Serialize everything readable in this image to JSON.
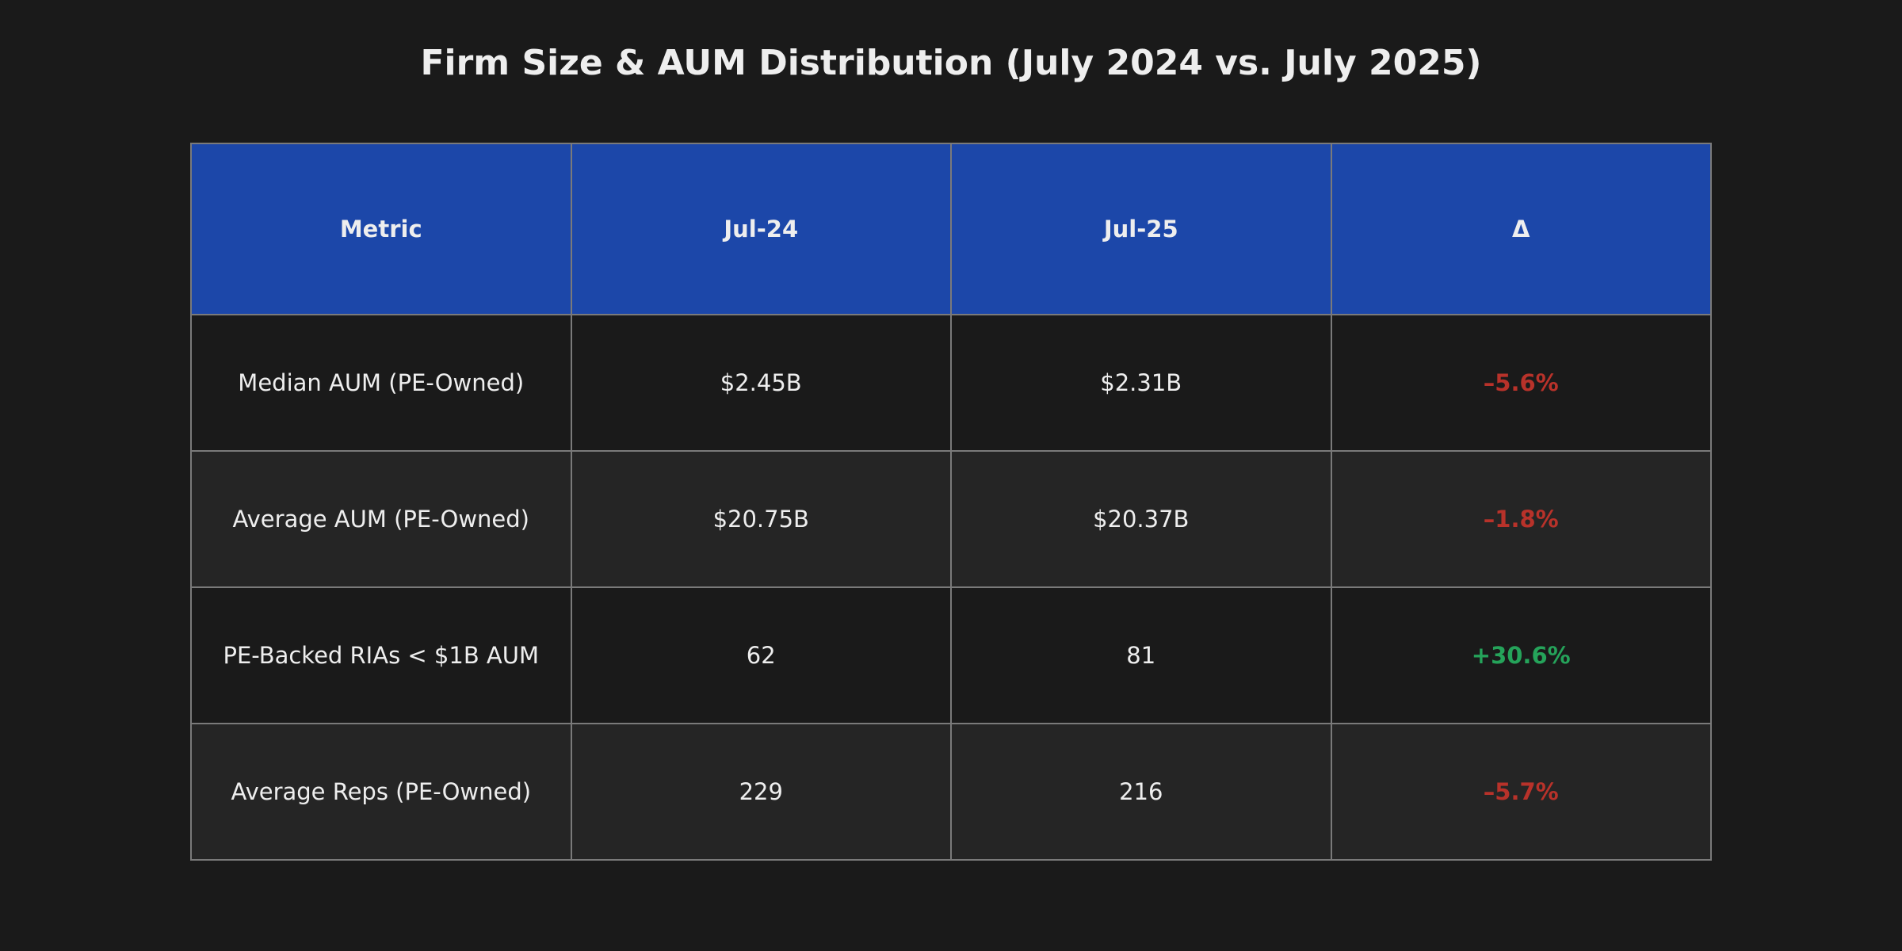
{
  "chart_data": {
    "type": "table",
    "title": "Firm Size & AUM Distribution (July 2024 vs. July 2025)",
    "columns": [
      "Metric",
      "Jul-24",
      "Jul-25",
      "Δ"
    ],
    "rows": [
      {
        "metric": "Median AUM (PE-Owned)",
        "jul24": "$2.45B",
        "jul25": "$2.31B",
        "delta": "–5.6%",
        "direction": "negative"
      },
      {
        "metric": "Average AUM (PE-Owned)",
        "jul24": "$20.75B",
        "jul25": "$20.37B",
        "delta": "–1.8%",
        "direction": "negative"
      },
      {
        "metric": "PE-Backed RIAs < $1B AUM",
        "jul24": "62",
        "jul25": "81",
        "delta": "+30.6%",
        "direction": "positive"
      },
      {
        "metric": "Average Reps (PE-Owned)",
        "jul24": "229",
        "jul25": "216",
        "delta": "–5.7%",
        "direction": "negative"
      }
    ],
    "colors": {
      "background": "#1a1a1a",
      "header_fill": "#1c47a9",
      "negative": "#b8322a",
      "positive": "#25a35a",
      "grid": "#7a7a7a"
    }
  }
}
